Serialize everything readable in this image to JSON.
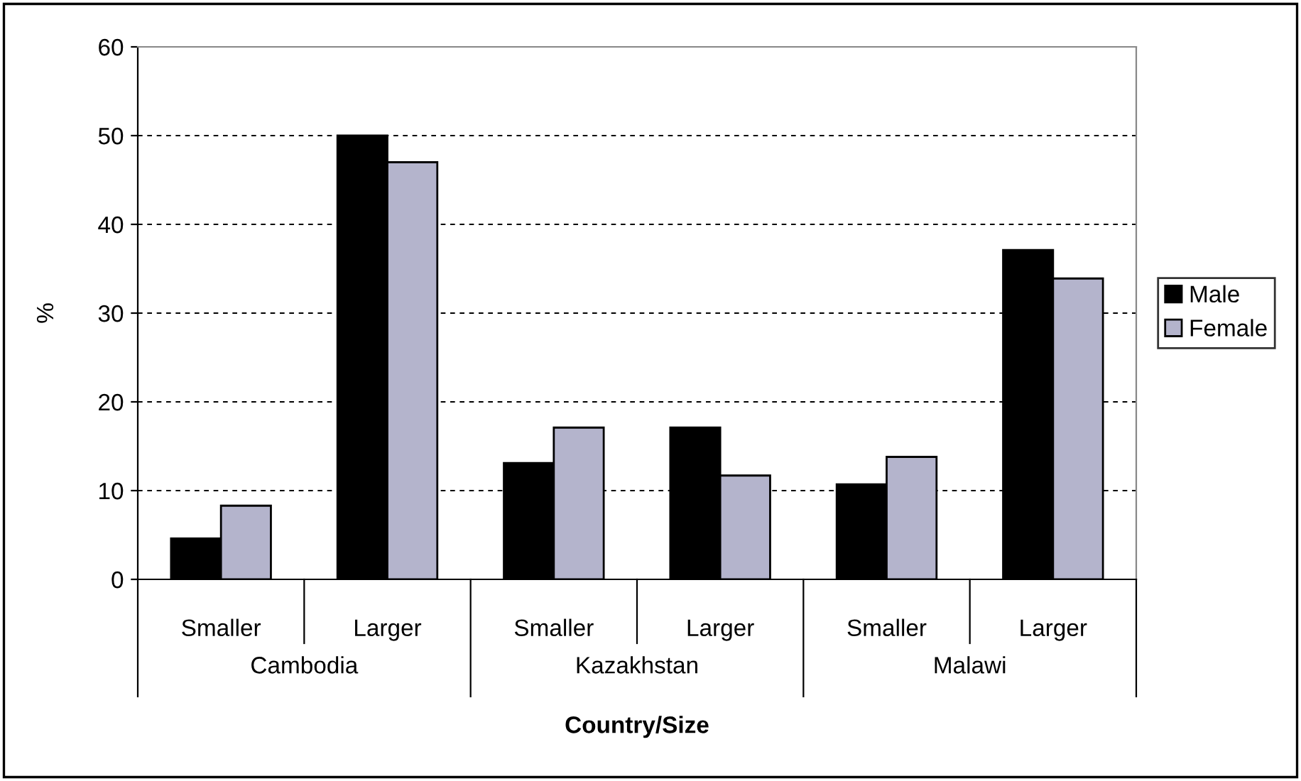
{
  "chart_data": {
    "type": "bar",
    "categories": [
      "Smaller",
      "Larger",
      "Smaller",
      "Larger",
      "Smaller",
      "Larger"
    ],
    "series": [
      {
        "name": "Male",
        "color": "#000000",
        "values": [
          4.6,
          50,
          13.1,
          17.1,
          10.7,
          37.1
        ]
      },
      {
        "name": "Female",
        "color": "#b4b4cc",
        "values": [
          8.3,
          47,
          17.1,
          11.7,
          13.8,
          33.9
        ]
      }
    ],
    "annotations": [
      "Cambodia",
      "Kazakhstan",
      "Malawi"
    ],
    "xlabel": "Country/Size",
    "ylabel": "%",
    "ylim": [
      0,
      60
    ],
    "yticks": [
      0,
      10,
      20,
      30,
      40,
      50,
      60
    ],
    "grid": "y",
    "legend": "right"
  }
}
